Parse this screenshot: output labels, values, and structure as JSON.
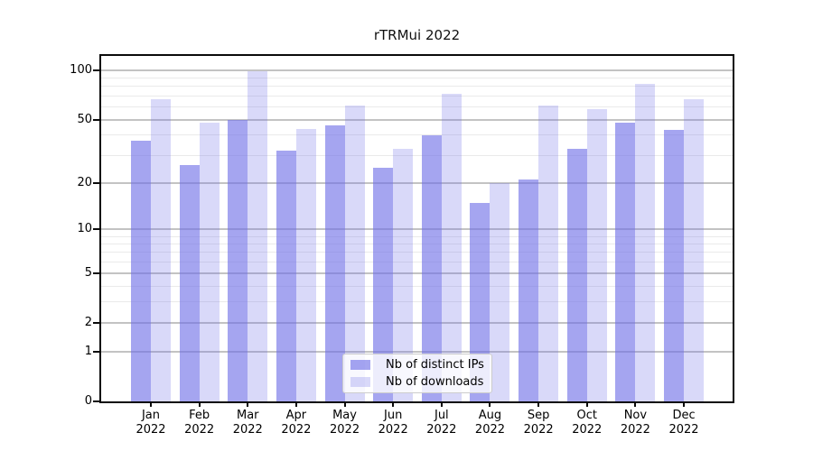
{
  "title": "rTRMui 2022",
  "year": "2022",
  "chart_data": {
    "type": "bar",
    "title": "rTRMui 2022",
    "categories": [
      "Jan 2022",
      "Feb 2022",
      "Mar 2022",
      "Apr 2022",
      "May 2022",
      "Jun 2022",
      "Jul 2022",
      "Aug 2022",
      "Sep 2022",
      "Oct 2022",
      "Nov 2022",
      "Dec 2022"
    ],
    "series": [
      {
        "name": "Nb of distinct IPs",
        "color": "rgba(109,109,230,0.62)",
        "values": [
          37,
          26,
          50,
          32,
          46,
          25,
          40,
          15,
          21,
          33,
          48,
          43
        ]
      },
      {
        "name": "Nb of downloads",
        "color": "rgba(109,109,230,0.26)",
        "values": [
          67,
          48,
          99,
          44,
          61,
          33,
          72,
          20,
          61,
          58,
          83,
          67
        ]
      }
    ],
    "xlabel": "",
    "ylabel": "",
    "yscale": "log10(1+y)",
    "ylim": [
      0,
      110
    ],
    "y_axis": {
      "major_ticks": [
        100,
        50,
        20,
        10,
        5,
        2,
        1,
        0
      ],
      "minor_gridlines": [
        90,
        80,
        70,
        60,
        40,
        30,
        9,
        8,
        7,
        6,
        4,
        3
      ]
    },
    "grid": true,
    "legend_position": "lower center"
  },
  "legend": {
    "items": [
      {
        "label": "Nb of distinct IPs"
      },
      {
        "label": "Nb of downloads"
      }
    ]
  },
  "colors": {
    "bar_distinct_ips": "rgba(109,109,230,0.62)",
    "bar_downloads": "rgba(109,109,230,0.26)",
    "grid_major": "#c3c3c3",
    "grid_minor": "#eaeaea",
    "spine": "#0a0a0a"
  }
}
